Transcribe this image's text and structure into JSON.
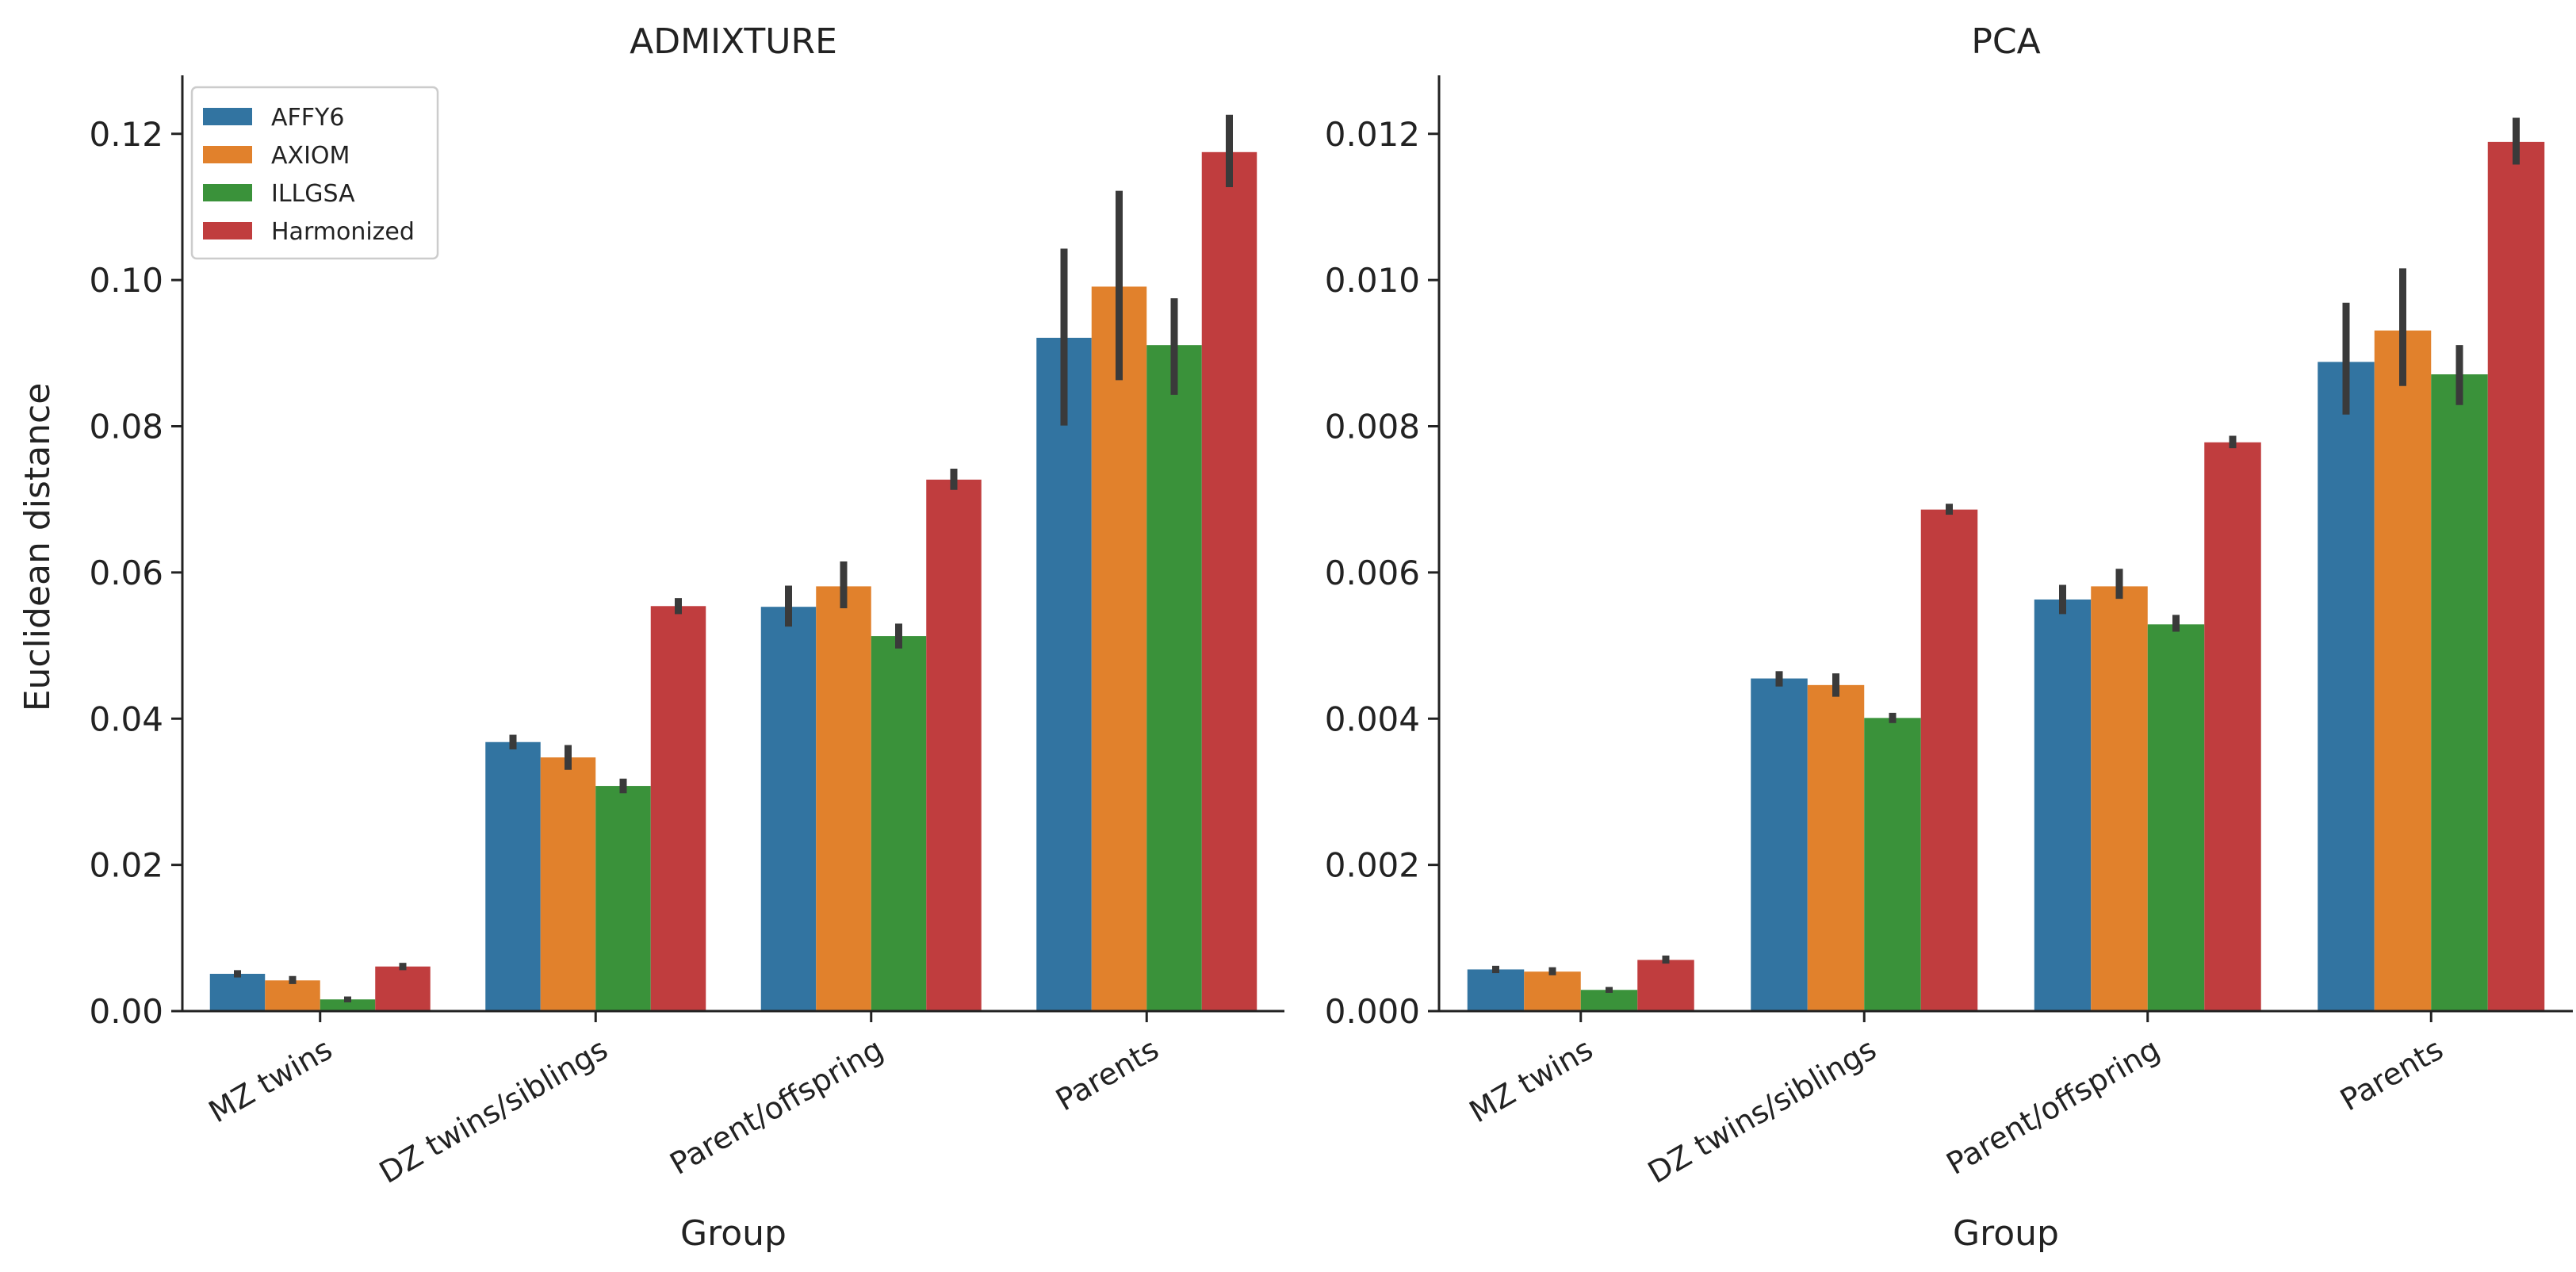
{
  "chart_data": [
    {
      "type": "bar",
      "title": "ADMIXTURE",
      "xlabel": "Group",
      "ylabel": "Euclidean distance",
      "categories": [
        "MZ twins",
        "DZ twins/siblings",
        "Parent/offspring",
        "Parents"
      ],
      "ylim": [
        0,
        0.128
      ],
      "yticks": [
        0.0,
        0.02,
        0.04,
        0.06,
        0.08,
        0.1,
        0.12
      ],
      "ytick_labels": [
        "0.00",
        "0.02",
        "0.04",
        "0.06",
        "0.08",
        "0.10",
        "0.12"
      ],
      "legend": {
        "location": "top-left",
        "visible": true
      },
      "series": [
        {
          "name": "AFFY6",
          "color": "#3274a1",
          "values": [
            0.0051,
            0.0368,
            0.0553,
            0.0921
          ],
          "ci_low": [
            0.0046,
            0.0358,
            0.0526,
            0.0801
          ],
          "ci_high": [
            0.0056,
            0.0378,
            0.0582,
            0.1043
          ]
        },
        {
          "name": "AXIOM",
          "color": "#e1812c",
          "values": [
            0.0042,
            0.0347,
            0.0581,
            0.0991
          ],
          "ci_low": [
            0.0037,
            0.033,
            0.0551,
            0.0863
          ],
          "ci_high": [
            0.0048,
            0.0364,
            0.0615,
            0.1122
          ]
        },
        {
          "name": "ILLGSA",
          "color": "#3a923a",
          "values": [
            0.0016,
            0.0308,
            0.0513,
            0.0911
          ],
          "ci_low": [
            0.0012,
            0.0298,
            0.0496,
            0.0843
          ],
          "ci_high": [
            0.002,
            0.0318,
            0.053,
            0.0975
          ]
        },
        {
          "name": "Harmonized",
          "color": "#c03d3e",
          "values": [
            0.0061,
            0.0554,
            0.0727,
            0.1175
          ],
          "ci_low": [
            0.0056,
            0.0543,
            0.0713,
            0.1127
          ],
          "ci_high": [
            0.0066,
            0.0565,
            0.0742,
            0.1226
          ]
        }
      ]
    },
    {
      "type": "bar",
      "title": "PCA",
      "xlabel": "Group",
      "ylabel": "",
      "categories": [
        "MZ twins",
        "DZ twins/siblings",
        "Parent/offspring",
        "Parents"
      ],
      "ylim": [
        0,
        0.0128
      ],
      "yticks": [
        0.0,
        0.002,
        0.004,
        0.006,
        0.008,
        0.01,
        0.012
      ],
      "ytick_labels": [
        "0.000",
        "0.002",
        "0.004",
        "0.006",
        "0.008",
        "0.010",
        "0.012"
      ],
      "legend": {
        "visible": false
      },
      "series": [
        {
          "name": "AFFY6",
          "color": "#3274a1",
          "values": [
            0.00057,
            0.00455,
            0.00563,
            0.00888
          ],
          "ci_low": [
            0.00052,
            0.00444,
            0.00543,
            0.00816
          ],
          "ci_high": [
            0.00062,
            0.00465,
            0.00583,
            0.00969
          ]
        },
        {
          "name": "AXIOM",
          "color": "#e1812c",
          "values": [
            0.00054,
            0.00446,
            0.00581,
            0.00931
          ],
          "ci_low": [
            0.00049,
            0.0043,
            0.00564,
            0.00855
          ],
          "ci_high": [
            0.0006,
            0.00462,
            0.00605,
            0.01016
          ]
        },
        {
          "name": "ILLGSA",
          "color": "#3a923a",
          "values": [
            0.00029,
            0.00401,
            0.00529,
            0.00871
          ],
          "ci_low": [
            0.00025,
            0.00394,
            0.00519,
            0.00829
          ],
          "ci_high": [
            0.00033,
            0.00408,
            0.00542,
            0.00911
          ]
        },
        {
          "name": "Harmonized",
          "color": "#c03d3e",
          "values": [
            0.0007,
            0.00686,
            0.00778,
            0.01189
          ],
          "ci_low": [
            0.00065,
            0.00679,
            0.0077,
            0.01158
          ],
          "ci_high": [
            0.00076,
            0.00694,
            0.00787,
            0.01222
          ]
        }
      ]
    }
  ]
}
